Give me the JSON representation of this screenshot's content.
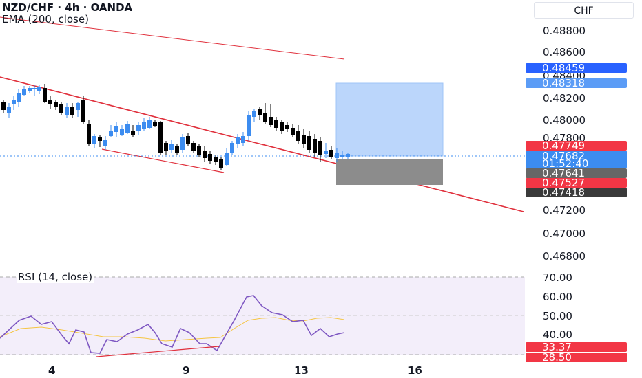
{
  "header": {
    "title": "NZD/CHF · 4h · OANDA",
    "indicator": "EMA (200, close)"
  },
  "scale": {
    "currency": "CHF"
  },
  "price_axis": [
    "0.48800",
    "0.48600",
    "0.48400",
    "0.48200",
    "0.48000",
    "0.47800",
    "0.47200",
    "0.47000",
    "0.46800"
  ],
  "price_tags": [
    {
      "label": "0.48459",
      "color": "#2962ff"
    },
    {
      "label": "0.48318",
      "color": "#5b9cf6"
    },
    {
      "label": "0.47749",
      "color": "#f23645"
    },
    {
      "label": "0.47682",
      "color": "#3c8cf0"
    },
    {
      "label": "01:52:40",
      "color": "#3c8cf0"
    },
    {
      "label": "0.47641",
      "color": "#666666"
    },
    {
      "label": "0.47527",
      "color": "#f23645"
    },
    {
      "label": "0.47418",
      "color": "#3a3a3a"
    }
  ],
  "rsi": {
    "label": "RSI (14, close)",
    "axis": [
      "70.00",
      "60.00",
      "50.00",
      "40.00"
    ],
    "tags": [
      {
        "label": "33.37",
        "color": "#f23645"
      },
      {
        "label": "28.50",
        "color": "#f23645"
      }
    ]
  },
  "time_axis": [
    "4",
    "9",
    "13",
    "16"
  ],
  "colors": {
    "up": "#3c8cf0",
    "down": "#000000",
    "trendline": "#e0303c",
    "ema": "#e0303c",
    "rsi": "#7e57c2",
    "rsi_ma": "#f5c542"
  }
}
